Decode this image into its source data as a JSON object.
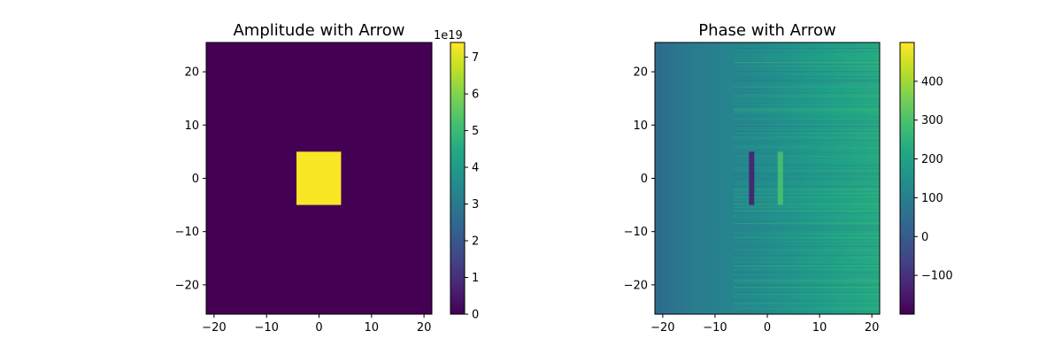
{
  "chart_data": [
    {
      "type": "heatmap",
      "title": "Amplitude with Arrow",
      "xlabel": "",
      "ylabel": "",
      "xlim": [
        -21.5,
        21.5
      ],
      "ylim": [
        -25.5,
        25.5
      ],
      "x_ticks": [
        -20,
        -10,
        0,
        10,
        20
      ],
      "x_tick_labels": [
        "−20",
        "−10",
        "0",
        "10",
        "20"
      ],
      "y_ticks": [
        -20,
        -10,
        0,
        10,
        20
      ],
      "y_tick_labels": [
        "−20",
        "−10",
        "0",
        "10",
        "20"
      ],
      "colormap": "viridis",
      "background_value": 0,
      "regions": [
        {
          "x": [
            -4.3,
            4.2
          ],
          "y": [
            -5,
            5
          ],
          "value": 7.35e+19
        }
      ],
      "colorbar": {
        "min": 0,
        "max": 7.4,
        "ticks": [
          0,
          1,
          2,
          3,
          4,
          5,
          6,
          7
        ],
        "tick_labels": [
          "0",
          "1",
          "2",
          "3",
          "4",
          "5",
          "6",
          "7"
        ],
        "offset_label": "1e19"
      }
    },
    {
      "type": "heatmap",
      "title": "Phase with Arrow",
      "xlabel": "",
      "ylabel": "",
      "xlim": [
        -21.5,
        21.5
      ],
      "ylim": [
        -25.5,
        25.5
      ],
      "x_ticks": [
        -20,
        -10,
        0,
        10,
        20
      ],
      "x_tick_labels": [
        "−20",
        "−10",
        "0",
        "10",
        "20"
      ],
      "y_ticks": [
        -20,
        -10,
        0,
        10,
        20
      ],
      "y_tick_labels": [
        "−20",
        "−10",
        "0",
        "10",
        "20"
      ],
      "colormap": "viridis",
      "description_values": {
        "left_edge_value": 60,
        "right_edge_value": 220,
        "dark_stripe": {
          "x": -3,
          "y": [
            -5,
            5
          ],
          "value": -150
        },
        "bright_stripe": {
          "x": 2.5,
          "y": [
            -5,
            5
          ],
          "value": 300
        }
      },
      "colorbar": {
        "min": -200,
        "max": 500,
        "ticks": [
          -100,
          0,
          100,
          200,
          300,
          400
        ],
        "tick_labels": [
          "−100",
          "0",
          "100",
          "200",
          "300",
          "400"
        ]
      }
    }
  ]
}
